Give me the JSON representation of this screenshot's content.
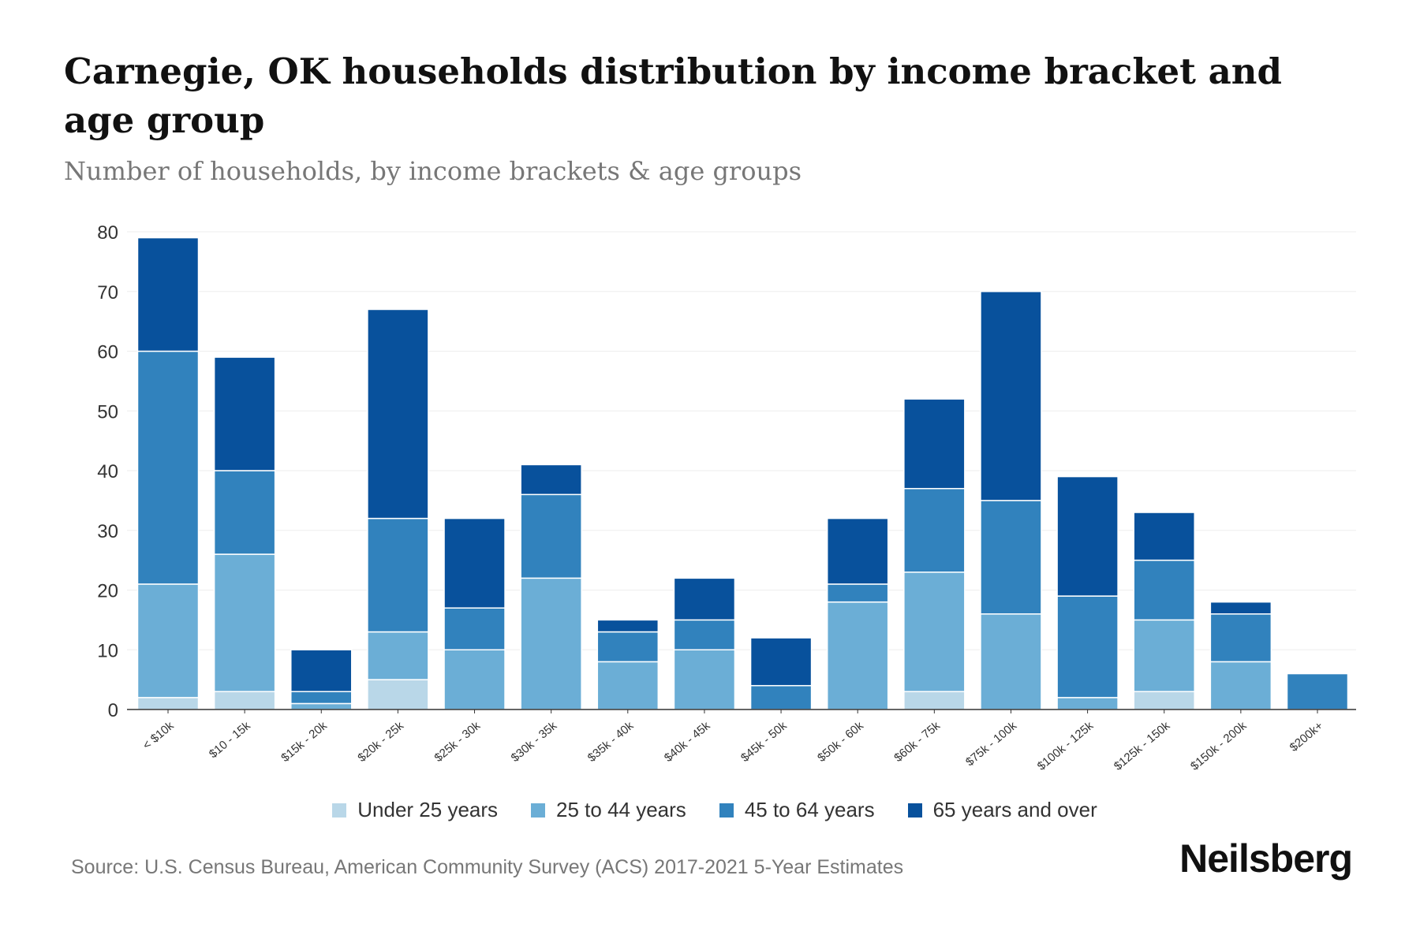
{
  "title": "Carnegie, OK households distribution by income bracket and age group",
  "subtitle": "Number of households, by income brackets & age groups",
  "source": "Source: U.S. Census Bureau, American Community Survey (ACS) 2017-2021 5-Year Estimates",
  "logo": "Neilsberg",
  "chart_data": {
    "type": "bar",
    "stacked": true,
    "title": "Carnegie, OK households distribution by income bracket and age group",
    "xlabel": "",
    "ylabel": "Number of households",
    "ylim": [
      0,
      80
    ],
    "yticks": [
      0,
      10,
      20,
      30,
      40,
      50,
      60,
      70,
      80
    ],
    "legend_position": "bottom",
    "categories": [
      "< $10k",
      "$10 - 15k",
      "$15k - 20k",
      "$20k - 25k",
      "$25k - 30k",
      "$30k - 35k",
      "$35k - 40k",
      "$40k - 45k",
      "$45k - 50k",
      "$50k - 60k",
      "$60k - 75k",
      "$75k - 100k",
      "$100k - 125k",
      "$125k - 150k",
      "$150k - 200k",
      "$200k+"
    ],
    "series": [
      {
        "name": "Under 25 years",
        "color": "#b9d7e8",
        "values": [
          2,
          3,
          0,
          5,
          0,
          0,
          0,
          0,
          0,
          0,
          3,
          0,
          0,
          3,
          0,
          0
        ]
      },
      {
        "name": "25 to 44 years",
        "color": "#6baed6",
        "values": [
          19,
          23,
          1,
          8,
          10,
          22,
          8,
          10,
          0,
          18,
          20,
          16,
          2,
          12,
          8,
          0
        ]
      },
      {
        "name": "45 to 64 years",
        "color": "#3182bd",
        "values": [
          39,
          14,
          2,
          19,
          7,
          14,
          5,
          5,
          4,
          3,
          14,
          19,
          17,
          10,
          8,
          6
        ]
      },
      {
        "name": "65 years and over",
        "color": "#08519c",
        "values": [
          19,
          19,
          7,
          35,
          15,
          5,
          2,
          7,
          8,
          11,
          15,
          35,
          20,
          8,
          2,
          0
        ]
      }
    ]
  }
}
